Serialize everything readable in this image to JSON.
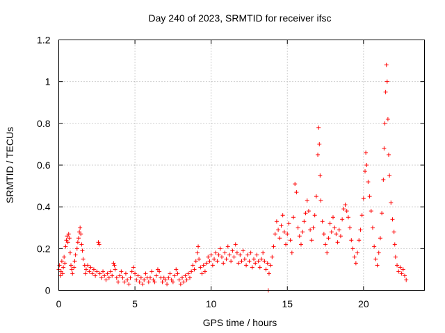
{
  "chart_data": {
    "type": "scatter",
    "title": "Day 240 of 2023, SRMTID for receiver ifsc",
    "xlabel": "GPS time / hours",
    "ylabel": "SRMTID / TECUs",
    "xlim": [
      0,
      24
    ],
    "ylim": [
      0,
      1.2
    ],
    "x_ticks": [
      0,
      5,
      10,
      15,
      20
    ],
    "x_tick_labels": [
      "0",
      "5",
      "10",
      "15",
      "20"
    ],
    "y_ticks": [
      0,
      0.2,
      0.4,
      0.6,
      0.8,
      1.0,
      1.2
    ],
    "y_tick_labels": [
      "0",
      "0.2",
      "0.4",
      "0.6",
      "0.8",
      "1",
      "1.2"
    ],
    "grid": true,
    "marker": "+",
    "color": "#ff0000",
    "series": [
      {
        "name": "SRMTID",
        "points": [
          [
            0.0,
            0.1
          ],
          [
            0.05,
            0.12
          ],
          [
            0.1,
            0.07
          ],
          [
            0.15,
            0.09
          ],
          [
            0.2,
            0.14
          ],
          [
            0.25,
            0.08
          ],
          [
            0.3,
            0.11
          ],
          [
            0.35,
            0.16
          ],
          [
            0.4,
            0.13
          ],
          [
            0.45,
            0.21
          ],
          [
            0.5,
            0.24
          ],
          [
            0.55,
            0.26
          ],
          [
            0.6,
            0.23
          ],
          [
            0.65,
            0.27
          ],
          [
            0.7,
            0.25
          ],
          [
            0.75,
            0.18
          ],
          [
            0.8,
            0.12
          ],
          [
            0.85,
            0.1
          ],
          [
            0.9,
            0.08
          ],
          [
            1.0,
            0.11
          ],
          [
            1.05,
            0.14
          ],
          [
            1.1,
            0.17
          ],
          [
            1.2,
            0.2
          ],
          [
            1.25,
            0.23
          ],
          [
            1.3,
            0.25
          ],
          [
            1.35,
            0.28
          ],
          [
            1.4,
            0.3
          ],
          [
            1.45,
            0.27
          ],
          [
            1.5,
            0.22
          ],
          [
            1.55,
            0.19
          ],
          [
            1.6,
            0.15
          ],
          [
            1.7,
            0.12
          ],
          [
            1.75,
            0.08
          ],
          [
            1.8,
            0.1
          ],
          [
            1.9,
            0.12
          ],
          [
            2.0,
            0.09
          ],
          [
            2.1,
            0.11
          ],
          [
            2.2,
            0.08
          ],
          [
            2.3,
            0.1
          ],
          [
            2.4,
            0.07
          ],
          [
            2.5,
            0.09
          ],
          [
            2.6,
            0.23
          ],
          [
            2.65,
            0.22
          ],
          [
            2.7,
            0.08
          ],
          [
            2.8,
            0.06
          ],
          [
            2.9,
            0.09
          ],
          [
            3.0,
            0.07
          ],
          [
            3.1,
            0.05
          ],
          [
            3.2,
            0.08
          ],
          [
            3.3,
            0.06
          ],
          [
            3.4,
            0.09
          ],
          [
            3.5,
            0.07
          ],
          [
            3.6,
            0.13
          ],
          [
            3.65,
            0.12
          ],
          [
            3.7,
            0.1
          ],
          [
            3.8,
            0.06
          ],
          [
            3.9,
            0.04
          ],
          [
            4.0,
            0.07
          ],
          [
            4.1,
            0.09
          ],
          [
            4.2,
            0.06
          ],
          [
            4.3,
            0.04
          ],
          [
            4.4,
            0.08
          ],
          [
            4.5,
            0.05
          ],
          [
            4.6,
            0.03
          ],
          [
            4.7,
            0.06
          ],
          [
            4.8,
            0.09
          ],
          [
            4.9,
            0.11
          ],
          [
            5.0,
            0.08
          ],
          [
            5.1,
            0.05
          ],
          [
            5.2,
            0.07
          ],
          [
            5.3,
            0.04
          ],
          [
            5.4,
            0.06
          ],
          [
            5.5,
            0.03
          ],
          [
            5.6,
            0.05
          ],
          [
            5.7,
            0.08
          ],
          [
            5.8,
            0.06
          ],
          [
            5.9,
            0.04
          ],
          [
            6.0,
            0.06
          ],
          [
            6.1,
            0.09
          ],
          [
            6.2,
            0.05
          ],
          [
            6.3,
            0.04
          ],
          [
            6.4,
            0.07
          ],
          [
            6.5,
            0.1
          ],
          [
            6.6,
            0.09
          ],
          [
            6.7,
            0.06
          ],
          [
            6.8,
            0.04
          ],
          [
            6.9,
            0.06
          ],
          [
            7.0,
            0.05
          ],
          [
            7.1,
            0.03
          ],
          [
            7.2,
            0.06
          ],
          [
            7.3,
            0.08
          ],
          [
            7.4,
            0.05
          ],
          [
            7.5,
            0.04
          ],
          [
            7.6,
            0.07
          ],
          [
            7.7,
            0.1
          ],
          [
            7.8,
            0.08
          ],
          [
            7.9,
            0.05
          ],
          [
            8.0,
            0.03
          ],
          [
            8.1,
            0.06
          ],
          [
            8.2,
            0.04
          ],
          [
            8.3,
            0.07
          ],
          [
            8.4,
            0.05
          ],
          [
            8.5,
            0.08
          ],
          [
            8.6,
            0.06
          ],
          [
            8.7,
            0.09
          ],
          [
            8.8,
            0.12
          ],
          [
            8.9,
            0.1
          ],
          [
            9.0,
            0.14
          ],
          [
            9.1,
            0.18
          ],
          [
            9.15,
            0.21
          ],
          [
            9.2,
            0.15
          ],
          [
            9.3,
            0.11
          ],
          [
            9.4,
            0.08
          ],
          [
            9.5,
            0.12
          ],
          [
            9.6,
            0.09
          ],
          [
            9.7,
            0.13
          ],
          [
            9.8,
            0.16
          ],
          [
            9.9,
            0.14
          ],
          [
            10.0,
            0.17
          ],
          [
            10.1,
            0.12
          ],
          [
            10.2,
            0.15
          ],
          [
            10.3,
            0.18
          ],
          [
            10.4,
            0.14
          ],
          [
            10.5,
            0.17
          ],
          [
            10.6,
            0.2
          ],
          [
            10.7,
            0.16
          ],
          [
            10.8,
            0.13
          ],
          [
            10.9,
            0.18
          ],
          [
            11.0,
            0.15
          ],
          [
            11.1,
            0.21
          ],
          [
            11.2,
            0.17
          ],
          [
            11.3,
            0.14
          ],
          [
            11.4,
            0.19
          ],
          [
            11.5,
            0.16
          ],
          [
            11.6,
            0.22
          ],
          [
            11.7,
            0.18
          ],
          [
            11.8,
            0.13
          ],
          [
            11.9,
            0.17
          ],
          [
            12.0,
            0.14
          ],
          [
            12.1,
            0.19
          ],
          [
            12.2,
            0.15
          ],
          [
            12.3,
            0.12
          ],
          [
            12.4,
            0.17
          ],
          [
            12.5,
            0.14
          ],
          [
            12.6,
            0.18
          ],
          [
            12.7,
            0.11
          ],
          [
            12.8,
            0.15
          ],
          [
            12.9,
            0.13
          ],
          [
            13.0,
            0.17
          ],
          [
            13.1,
            0.14
          ],
          [
            13.2,
            0.11
          ],
          [
            13.3,
            0.15
          ],
          [
            13.4,
            0.18
          ],
          [
            13.5,
            0.14
          ],
          [
            13.6,
            0.1
          ],
          [
            13.7,
            0.13
          ],
          [
            13.75,
            0.0
          ],
          [
            13.8,
            0.08
          ],
          [
            13.9,
            0.12
          ],
          [
            14.0,
            0.16
          ],
          [
            14.1,
            0.21
          ],
          [
            14.2,
            0.27
          ],
          [
            14.3,
            0.33
          ],
          [
            14.4,
            0.29
          ],
          [
            14.5,
            0.25
          ],
          [
            14.6,
            0.31
          ],
          [
            14.7,
            0.36
          ],
          [
            14.8,
            0.28
          ],
          [
            14.9,
            0.22
          ],
          [
            15.0,
            0.27
          ],
          [
            15.1,
            0.32
          ],
          [
            15.2,
            0.24
          ],
          [
            15.3,
            0.18
          ],
          [
            15.4,
            0.35
          ],
          [
            15.5,
            0.51
          ],
          [
            15.6,
            0.47
          ],
          [
            15.7,
            0.3
          ],
          [
            15.8,
            0.26
          ],
          [
            15.9,
            0.22
          ],
          [
            16.0,
            0.28
          ],
          [
            16.1,
            0.33
          ],
          [
            16.2,
            0.37
          ],
          [
            16.3,
            0.43
          ],
          [
            16.4,
            0.38
          ],
          [
            16.5,
            0.29
          ],
          [
            16.6,
            0.24
          ],
          [
            16.7,
            0.3
          ],
          [
            16.8,
            0.36
          ],
          [
            16.9,
            0.45
          ],
          [
            17.0,
            0.65
          ],
          [
            17.05,
            0.78
          ],
          [
            17.1,
            0.7
          ],
          [
            17.15,
            0.55
          ],
          [
            17.2,
            0.43
          ],
          [
            17.3,
            0.33
          ],
          [
            17.4,
            0.27
          ],
          [
            17.5,
            0.22
          ],
          [
            17.6,
            0.18
          ],
          [
            17.7,
            0.25
          ],
          [
            17.8,
            0.32
          ],
          [
            17.9,
            0.28
          ],
          [
            18.0,
            0.35
          ],
          [
            18.1,
            0.3
          ],
          [
            18.2,
            0.27
          ],
          [
            18.3,
            0.23
          ],
          [
            18.4,
            0.29
          ],
          [
            18.5,
            0.26
          ],
          [
            18.6,
            0.34
          ],
          [
            18.7,
            0.39
          ],
          [
            18.8,
            0.41
          ],
          [
            18.9,
            0.38
          ],
          [
            19.0,
            0.35
          ],
          [
            19.1,
            0.3
          ],
          [
            19.2,
            0.24
          ],
          [
            19.3,
            0.2
          ],
          [
            19.4,
            0.16
          ],
          [
            19.5,
            0.13
          ],
          [
            19.6,
            0.18
          ],
          [
            19.7,
            0.24
          ],
          [
            19.8,
            0.29
          ],
          [
            19.9,
            0.36
          ],
          [
            20.0,
            0.44
          ],
          [
            20.1,
            0.57
          ],
          [
            20.15,
            0.66
          ],
          [
            20.2,
            0.6
          ],
          [
            20.3,
            0.52
          ],
          [
            20.4,
            0.45
          ],
          [
            20.5,
            0.38
          ],
          [
            20.6,
            0.3
          ],
          [
            20.7,
            0.21
          ],
          [
            20.8,
            0.15
          ],
          [
            20.9,
            0.12
          ],
          [
            21.0,
            0.18
          ],
          [
            21.1,
            0.25
          ],
          [
            21.2,
            0.37
          ],
          [
            21.3,
            0.53
          ],
          [
            21.35,
            0.68
          ],
          [
            21.4,
            0.8
          ],
          [
            21.45,
            0.95
          ],
          [
            21.5,
            1.08
          ],
          [
            21.55,
            1.0
          ],
          [
            21.6,
            0.82
          ],
          [
            21.65,
            0.65
          ],
          [
            21.7,
            0.55
          ],
          [
            21.8,
            0.42
          ],
          [
            21.9,
            0.34
          ],
          [
            22.0,
            0.28
          ],
          [
            22.05,
            0.22
          ],
          [
            22.1,
            0.16
          ],
          [
            22.2,
            0.12
          ],
          [
            22.3,
            0.09
          ],
          [
            22.4,
            0.11
          ],
          [
            22.5,
            0.08
          ],
          [
            22.6,
            0.1
          ],
          [
            22.7,
            0.07
          ],
          [
            22.8,
            0.05
          ]
        ]
      }
    ]
  }
}
